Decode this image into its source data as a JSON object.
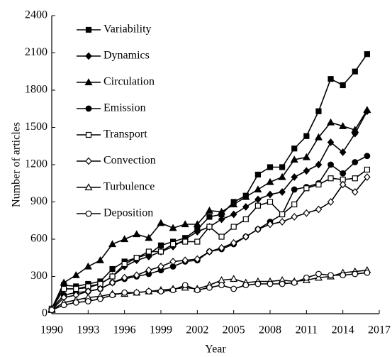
{
  "chart_data": {
    "type": "line",
    "x_label": "Year",
    "y_label": "Number of articles",
    "x": [
      1990,
      1991,
      1992,
      1993,
      1994,
      1995,
      1996,
      1997,
      1998,
      1999,
      2000,
      2001,
      2002,
      2003,
      2004,
      2005,
      2006,
      2007,
      2008,
      2009,
      2010,
      2011,
      2012,
      2013,
      2014,
      2015,
      2016
    ],
    "xlim": [
      1990,
      2017
    ],
    "xticks": [
      1990,
      1993,
      1996,
      1999,
      2002,
      2005,
      2008,
      2011,
      2014,
      2017
    ],
    "ylim": [
      0,
      2400
    ],
    "yticks": [
      0,
      300,
      600,
      900,
      1200,
      1500,
      1800,
      2100,
      2400
    ],
    "legend": "upper-left",
    "series": [
      {
        "name": "Variability",
        "color": "#000000",
        "marker": "square",
        "filled": true,
        "values": [
          40,
          230,
          220,
          240,
          260,
          360,
          420,
          450,
          480,
          550,
          580,
          610,
          680,
          780,
          800,
          900,
          950,
          1120,
          1180,
          1180,
          1330,
          1430,
          1630,
          1890,
          1840,
          1950,
          2090
        ]
      },
      {
        "name": "Dynamics",
        "color": "#000000",
        "marker": "diamond",
        "filled": true,
        "values": [
          40,
          200,
          200,
          210,
          240,
          300,
          380,
          430,
          460,
          500,
          540,
          600,
          660,
          700,
          760,
          800,
          860,
          920,
          960,
          980,
          1100,
          1150,
          1200,
          1380,
          1300,
          1450,
          1630
        ]
      },
      {
        "name": "Circulation",
        "color": "#000000",
        "marker": "triangle",
        "filled": true,
        "values": [
          40,
          250,
          310,
          380,
          430,
          560,
          600,
          640,
          610,
          730,
          690,
          720,
          720,
          830,
          820,
          880,
          940,
          1000,
          1060,
          1100,
          1240,
          1260,
          1420,
          1540,
          1510,
          1480,
          1640
        ]
      },
      {
        "name": "Emission",
        "color": "#000000",
        "marker": "circle",
        "filled": true,
        "values": [
          40,
          150,
          170,
          180,
          200,
          250,
          280,
          300,
          320,
          350,
          380,
          420,
          430,
          500,
          520,
          560,
          620,
          680,
          740,
          800,
          1000,
          1020,
          1050,
          1200,
          1130,
          1220,
          1270
        ]
      },
      {
        "name": "Transport",
        "color": "#000000",
        "marker": "square",
        "filled": false,
        "values": [
          40,
          200,
          200,
          220,
          240,
          300,
          400,
          450,
          500,
          500,
          560,
          580,
          580,
          700,
          620,
          700,
          760,
          870,
          900,
          800,
          880,
          1010,
          1040,
          1090,
          1080,
          1090,
          1160
        ]
      },
      {
        "name": "Convection",
        "color": "#000000",
        "marker": "diamond",
        "filled": false,
        "values": [
          30,
          130,
          150,
          180,
          200,
          250,
          290,
          310,
          350,
          380,
          420,
          430,
          440,
          500,
          530,
          570,
          620,
          680,
          720,
          740,
          780,
          810,
          840,
          900,
          1040,
          980,
          1100
        ]
      },
      {
        "name": "Turbulence",
        "color": "#000000",
        "marker": "triangle",
        "filled": false,
        "values": [
          30,
          90,
          110,
          130,
          140,
          160,
          160,
          170,
          180,
          190,
          200,
          210,
          200,
          230,
          270,
          280,
          250,
          260,
          260,
          270,
          260,
          270,
          290,
          300,
          330,
          340,
          350
        ]
      },
      {
        "name": "Deposition",
        "color": "#000000",
        "marker": "circle",
        "filled": false,
        "values": [
          30,
          70,
          90,
          100,
          120,
          150,
          170,
          170,
          180,
          180,
          190,
          230,
          190,
          210,
          230,
          200,
          230,
          240,
          240,
          240,
          250,
          290,
          320,
          310,
          310,
          320,
          330
        ]
      }
    ]
  }
}
